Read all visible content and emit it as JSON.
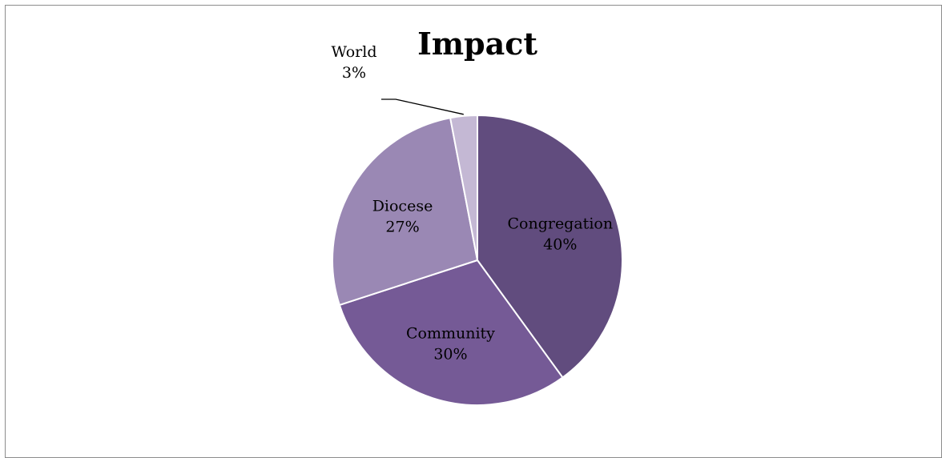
{
  "chart_data": {
    "type": "pie",
    "title": "Impact",
    "categories": [
      "Congregation",
      "Community",
      "Diocese",
      "World"
    ],
    "values": [
      40,
      30,
      27,
      3
    ],
    "value_labels": [
      "40%",
      "30%",
      "27%",
      "3%"
    ],
    "colors": [
      "#614c7e",
      "#755a96",
      "#9a88b4",
      "#c4b8d4"
    ],
    "label_colors": [
      "#000000",
      "#000000",
      "#000000",
      "#000000"
    ],
    "start_angle_deg": 0,
    "direction": "clockwise",
    "legend": "none"
  }
}
